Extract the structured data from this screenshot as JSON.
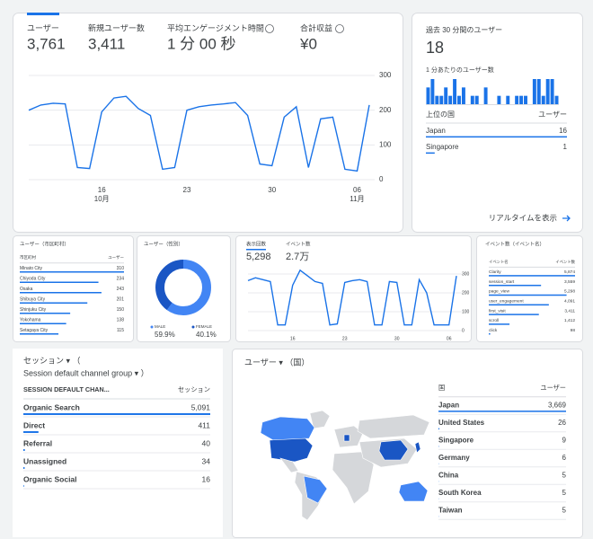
{
  "overview": {
    "metrics": [
      {
        "label": "ユーザー",
        "value": "3,761"
      },
      {
        "label": "新規ユーザー数",
        "value": "3,411"
      },
      {
        "label": "平均エンゲージメント時間",
        "value": "1 分 00 秒"
      },
      {
        "label": "合計収益",
        "value": "¥0"
      }
    ],
    "chart": {
      "type": "line",
      "color": "#1a73e8",
      "categories": [
        null,
        null,
        null,
        null,
        null,
        null,
        "16",
        null,
        null,
        null,
        null,
        null,
        null,
        "23",
        null,
        null,
        null,
        null,
        null,
        null,
        "30",
        null,
        null,
        null,
        null,
        null,
        null,
        "06",
        null
      ],
      "months": [
        null,
        null,
        null,
        null,
        null,
        null,
        "10月",
        null,
        null,
        null,
        null,
        null,
        null,
        null,
        null,
        null,
        null,
        null,
        null,
        null,
        null,
        null,
        null,
        null,
        null,
        null,
        null,
        "11月",
        null
      ],
      "values": [
        200,
        215,
        220,
        218,
        35,
        32,
        195,
        235,
        240,
        205,
        185,
        30,
        35,
        200,
        210,
        215,
        218,
        222,
        185,
        45,
        40,
        180,
        210,
        35,
        175,
        180,
        30,
        25,
        215
      ],
      "ylim": [
        0,
        300
      ],
      "yticks": [
        0,
        100,
        200,
        300
      ],
      "grid": true
    }
  },
  "realtime": {
    "title": "過去 30 分間のユーザー",
    "value": "18",
    "subtitle": "1 分あたりのユーザー数",
    "bars": {
      "type": "bar",
      "color": "#1a73e8",
      "values": [
        2,
        3,
        1,
        1,
        2,
        1,
        3,
        1,
        2,
        0,
        1,
        1,
        0,
        2,
        0,
        0,
        1,
        0,
        1,
        0,
        1,
        1,
        1,
        0,
        3,
        3,
        1,
        3,
        3,
        1
      ]
    },
    "table": {
      "header": [
        "上位の国",
        "ユーザー"
      ],
      "rows": [
        {
          "name": "Japan",
          "value": 16
        },
        {
          "name": "Singapore",
          "value": 1
        }
      ]
    },
    "link": "リアルタイムを表示"
  },
  "cities": {
    "title": "ユーザー（市区町村）",
    "table": {
      "header": [
        "市区町村",
        "ユーザー"
      ],
      "rows": [
        {
          "name": "Minato City",
          "value": 310
        },
        {
          "name": "Chiyoda City",
          "value": 234
        },
        {
          "name": "Osaka",
          "value": 243
        },
        {
          "name": "Shibuya City",
          "value": 201
        },
        {
          "name": "Shinjuku City",
          "value": 150
        },
        {
          "name": "Yokohama",
          "value": 138
        },
        {
          "name": "Setagaya City",
          "value": 115
        }
      ]
    }
  },
  "gender": {
    "title": "ユーザー（性別）",
    "type": "pie",
    "segments": [
      {
        "name": "MALE",
        "value": 59.9,
        "value_label": "59.9%",
        "color": "#4285f4"
      },
      {
        "name": "FEMALE",
        "value": 40.1,
        "value_label": "40.1%",
        "color": "#1a56c4"
      }
    ]
  },
  "views": {
    "metrics": [
      {
        "label": "表示回数",
        "value": "5,298"
      },
      {
        "label": "イベント数",
        "value": "2.7万"
      }
    ],
    "chart": {
      "type": "line",
      "color": "#1a73e8",
      "categories": [
        null,
        null,
        null,
        null,
        null,
        null,
        "16",
        null,
        null,
        null,
        null,
        null,
        null,
        "23",
        null,
        null,
        null,
        null,
        null,
        null,
        "30",
        null,
        null,
        null,
        null,
        null,
        null,
        "06",
        null
      ],
      "values": [
        265,
        280,
        270,
        260,
        30,
        30,
        240,
        320,
        290,
        260,
        250,
        30,
        35,
        255,
        265,
        270,
        260,
        30,
        30,
        260,
        255,
        30,
        30,
        270,
        200,
        30,
        30,
        30,
        290
      ],
      "ylim": [
        0,
        300
      ],
      "yticks": [
        0,
        100,
        200,
        300
      ],
      "grid": true
    }
  },
  "events": {
    "title": "イベント数（イベント名）",
    "table": {
      "header": [
        "イベント名",
        "イベント数"
      ],
      "rows": [
        {
          "name": "Clarity",
          "value": 5874,
          "label": "5,874"
        },
        {
          "name": "session_start",
          "value": 3559,
          "label": "3,559"
        },
        {
          "name": "page_view",
          "value": 5298,
          "label": "5,298"
        },
        {
          "name": "user_engagement",
          "value": 4091,
          "label": "4,091"
        },
        {
          "name": "first_visit",
          "value": 3411,
          "label": "3,411"
        },
        {
          "name": "scroll",
          "value": 1412,
          "label": "1,412"
        },
        {
          "name": "click",
          "value": 98
        }
      ]
    }
  },
  "channels": {
    "title": "セッション ▾ （",
    "subtitle": "Session default channel group ▾ ）",
    "table": {
      "header": [
        "SESSION DEFAULT CHAN...",
        "セッション"
      ],
      "rows": [
        {
          "name": "Organic Search",
          "value": 5091,
          "label": "5,091"
        },
        {
          "name": "Direct",
          "value": 411
        },
        {
          "name": "Referral",
          "value": 40
        },
        {
          "name": "Unassigned",
          "value": 34
        },
        {
          "name": "Organic Social",
          "value": 16
        }
      ]
    }
  },
  "countries": {
    "title": "ユーザー ▾ （国）",
    "table": {
      "header": [
        "国",
        "ユーザー"
      ],
      "rows": [
        {
          "name": "Japan",
          "value": 3669,
          "label": "3,669"
        },
        {
          "name": "United States",
          "value": 26
        },
        {
          "name": "Singapore",
          "value": 9
        },
        {
          "name": "Germany",
          "value": 6
        },
        {
          "name": "China",
          "value": 5
        },
        {
          "name": "South Korea",
          "value": 5
        },
        {
          "name": "Taiwan",
          "value": 5
        }
      ]
    }
  }
}
